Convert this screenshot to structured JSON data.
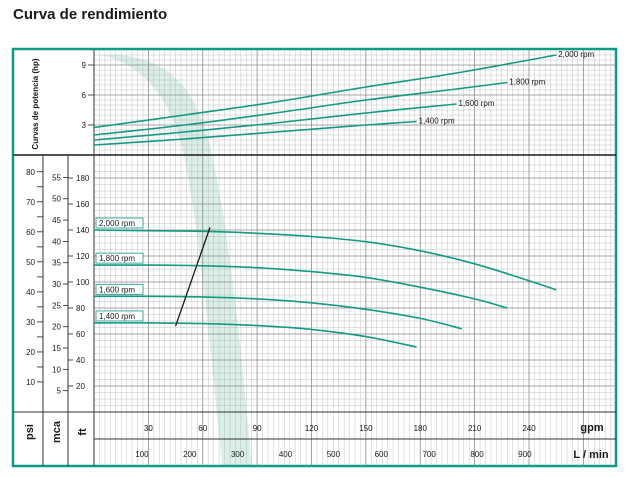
{
  "title": "Curva de rendimiento",
  "colors": {
    "frame": "#0b9c84",
    "curve": "#129a85",
    "grid": "#aaaaaa",
    "watermark": "#d6ede6",
    "axis": "#222222"
  },
  "chart_data": [
    {
      "type": "line",
      "name": "power-curves",
      "ylabel": "Curvas de potencia (hp)",
      "y_ticks": [
        3,
        6,
        9
      ],
      "ylim": [
        0,
        10.5
      ],
      "xlim_gpm": [
        0,
        288
      ],
      "series": [
        {
          "name": "2,000 rpm",
          "label": "2,000 rpm",
          "x_gpm": [
            0,
            50,
            100,
            150,
            200,
            255
          ],
          "y": [
            2.75,
            4.0,
            5.3,
            6.8,
            8.2,
            10.0
          ]
        },
        {
          "name": "1,800 rpm",
          "label": "1,800 rpm",
          "x_gpm": [
            0,
            50,
            100,
            150,
            200,
            228
          ],
          "y": [
            2.0,
            3.0,
            4.2,
            5.5,
            6.6,
            7.25
          ]
        },
        {
          "name": "1,600 rpm",
          "label": "1,600 rpm",
          "x_gpm": [
            0,
            50,
            100,
            150,
            200
          ],
          "y": [
            1.5,
            2.3,
            3.2,
            4.2,
            5.1
          ]
        },
        {
          "name": "1,400 rpm",
          "label": "1,400 rpm",
          "x_gpm": [
            0,
            50,
            100,
            150,
            178
          ],
          "y": [
            1.0,
            1.6,
            2.3,
            3.0,
            3.35
          ]
        }
      ]
    },
    {
      "type": "line",
      "name": "performance-curves",
      "xlabel_gpm": "gpm",
      "xlabel_lmin": "L / min",
      "x_ticks_gpm": [
        30,
        60,
        90,
        120,
        150,
        180,
        210,
        240
      ],
      "x_ticks_lmin": [
        100,
        200,
        300,
        400,
        500,
        600,
        700,
        800,
        900
      ],
      "xlim_gpm": [
        0,
        288
      ],
      "ylabel_ft": "ft",
      "ylabel_mca": "mca",
      "ylabel_psi": "psi",
      "y_ticks_ft": [
        20,
        40,
        60,
        80,
        100,
        120,
        140,
        160,
        180
      ],
      "y_ticks_mca": [
        5,
        10,
        15,
        20,
        25,
        30,
        35,
        40,
        45,
        50,
        55
      ],
      "y_ticks_psi": [
        10,
        15,
        20,
        25,
        30,
        35,
        40,
        45,
        50,
        55,
        60,
        65,
        70,
        75,
        80
      ],
      "y_tick_labels_psi": [
        10,
        20,
        30,
        40,
        50,
        60,
        70,
        80
      ],
      "ylim_ft": [
        0,
        195
      ],
      "series": [
        {
          "name": "2,000 rpm",
          "label": "2,000 rpm",
          "x_gpm": [
            0,
            30,
            60,
            90,
            120,
            150,
            180,
            210,
            240,
            255
          ],
          "y_ft": [
            140,
            139.5,
            139,
            137.5,
            135,
            131,
            124,
            114,
            101,
            94
          ]
        },
        {
          "name": "1,800 rpm",
          "label": "1,800 rpm",
          "x_gpm": [
            0,
            30,
            60,
            90,
            120,
            150,
            180,
            210,
            228
          ],
          "y_ft": [
            113,
            113,
            112.5,
            111,
            108,
            103.5,
            96,
            87,
            80
          ]
        },
        {
          "name": "1,600 rpm",
          "label": "1,600 rpm",
          "x_gpm": [
            0,
            30,
            60,
            90,
            120,
            150,
            180,
            203
          ],
          "y_ft": [
            89,
            89,
            88.5,
            87,
            84,
            79,
            72,
            64
          ]
        },
        {
          "name": "1,400 rpm",
          "label": "1,400 rpm",
          "x_gpm": [
            0,
            30,
            60,
            90,
            120,
            150,
            178
          ],
          "y_ft": [
            68.5,
            68.5,
            68,
            66.5,
            63.5,
            58,
            50
          ]
        }
      ],
      "efficiency_line": {
        "x_gpm": [
          45,
          64
        ],
        "y_ft": [
          66,
          142
        ]
      }
    }
  ]
}
